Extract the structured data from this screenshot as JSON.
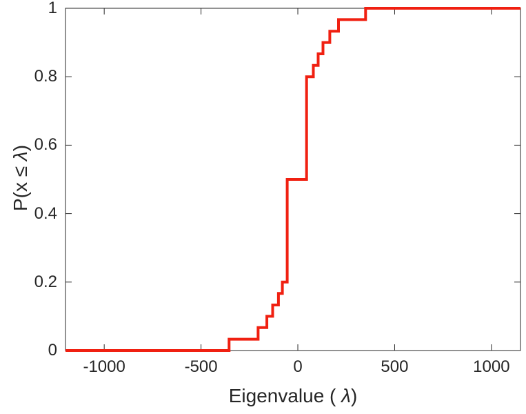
{
  "chart_data": {
    "type": "ecdf-step",
    "title": "",
    "xlabel_prefix": "Eigenvalue (  ",
    "xlabel_lambda": "λ",
    "xlabel_suffix": ")",
    "ylabel_prefix": "P(x ≤ ",
    "ylabel_lambda": "λ",
    "ylabel_suffix": ")",
    "xlim": [
      -1200,
      1150
    ],
    "ylim": [
      0,
      1
    ],
    "xticks": [
      -1000,
      -500,
      0,
      500,
      1000
    ],
    "xtick_labels": [
      "-1000",
      "-500",
      "0",
      "500",
      "1000"
    ],
    "yticks": [
      0,
      0.2,
      0.4,
      0.6,
      0.8,
      1
    ],
    "ytick_labels": [
      "0",
      "0.2",
      "0.4",
      "0.6",
      "0.8",
      "1"
    ],
    "grid": false,
    "legend": null,
    "line_color": "#f02011",
    "line_width": 4,
    "axis_color": "#262626",
    "steps": [
      {
        "x": -355,
        "cdf": 0.033
      },
      {
        "x": -205,
        "cdf": 0.067
      },
      {
        "x": -160,
        "cdf": 0.1
      },
      {
        "x": -130,
        "cdf": 0.133
      },
      {
        "x": -100,
        "cdf": 0.167
      },
      {
        "x": -80,
        "cdf": 0.2
      },
      {
        "x": -55,
        "cdf": 0.5
      },
      {
        "x": 45,
        "cdf": 0.8
      },
      {
        "x": 80,
        "cdf": 0.833
      },
      {
        "x": 105,
        "cdf": 0.867
      },
      {
        "x": 130,
        "cdf": 0.9
      },
      {
        "x": 165,
        "cdf": 0.933
      },
      {
        "x": 210,
        "cdf": 0.967
      },
      {
        "x": 350,
        "cdf": 1.0
      }
    ]
  }
}
